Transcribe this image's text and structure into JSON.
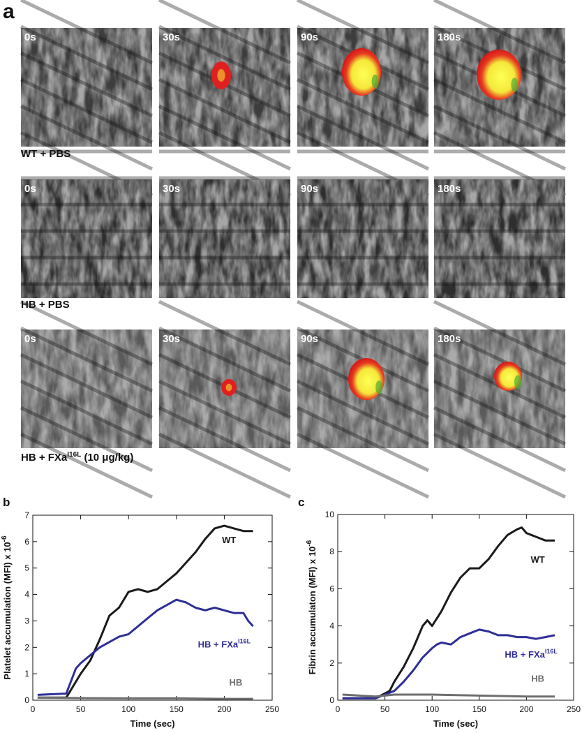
{
  "figure": {
    "panel_label": "a",
    "image_rows": [
      {
        "caption": "WT + PBS",
        "frames": [
          "0s",
          "30s",
          "90s",
          "180s"
        ]
      },
      {
        "caption": "HB + PBS",
        "frames": [
          "0s",
          "30s",
          "90s",
          "180s"
        ]
      },
      {
        "caption": "HB + FXa",
        "caption_sup": "I16L",
        "caption_end": " (10 μg/kg)",
        "frames": [
          "0s",
          "30s",
          "90s",
          "180s"
        ]
      }
    ]
  },
  "chart_data": [
    {
      "type": "line",
      "panel_label": "b",
      "xlabel": "Time (sec)",
      "ylabel": "Platelet accumulation (MFI) x 10",
      "ylabel_sup": "-6",
      "xlim": [
        0,
        250
      ],
      "xticks": [
        0,
        50,
        100,
        150,
        200,
        250
      ],
      "ylim": [
        0,
        7
      ],
      "yticks": [
        0,
        1,
        2,
        3,
        4,
        5,
        6,
        7
      ],
      "series": [
        {
          "name": "WT",
          "color": "#1a1a1a",
          "x": [
            5,
            35,
            40,
            50,
            60,
            70,
            80,
            90,
            100,
            110,
            120,
            130,
            140,
            150,
            160,
            170,
            180,
            190,
            200,
            210,
            220,
            230
          ],
          "values": [
            0.1,
            0.1,
            0.4,
            1.0,
            1.5,
            2.3,
            3.2,
            3.5,
            4.1,
            4.2,
            4.1,
            4.2,
            4.5,
            4.8,
            5.2,
            5.6,
            6.1,
            6.5,
            6.6,
            6.5,
            6.4,
            6.4
          ]
        },
        {
          "name": "HB + FXa",
          "name_sup": "I16L",
          "color": "#2e2e96",
          "x": [
            5,
            35,
            45,
            50,
            60,
            70,
            80,
            90,
            100,
            110,
            120,
            130,
            140,
            150,
            160,
            170,
            180,
            190,
            200,
            210,
            220,
            225,
            230
          ],
          "values": [
            0.2,
            0.25,
            1.2,
            1.4,
            1.7,
            2.0,
            2.2,
            2.4,
            2.5,
            2.8,
            3.1,
            3.4,
            3.6,
            3.8,
            3.7,
            3.5,
            3.4,
            3.5,
            3.4,
            3.3,
            3.3,
            3.0,
            2.8
          ]
        },
        {
          "name": "HB",
          "color": "#6e6e6e",
          "x": [
            5,
            50,
            100,
            150,
            200,
            230
          ],
          "values": [
            0.1,
            0.08,
            0.07,
            0.07,
            0.05,
            0.05
          ]
        }
      ]
    },
    {
      "type": "line",
      "panel_label": "c",
      "xlabel": "Time (sec)",
      "ylabel": "Fibrin accumulaton (MFI) x 10",
      "ylabel_sup": "-6",
      "xlim": [
        0,
        250
      ],
      "xticks": [
        0,
        50,
        100,
        150,
        200,
        250
      ],
      "ylim": [
        0,
        10
      ],
      "yticks": [
        0,
        2,
        4,
        6,
        8,
        10
      ],
      "series": [
        {
          "name": "WT",
          "color": "#1a1a1a",
          "x": [
            5,
            40,
            55,
            60,
            70,
            80,
            90,
            95,
            100,
            110,
            120,
            130,
            140,
            150,
            160,
            170,
            180,
            190,
            195,
            200,
            210,
            220,
            230
          ],
          "values": [
            0.1,
            0.1,
            0.5,
            1.0,
            1.8,
            2.8,
            4.0,
            4.3,
            4.0,
            4.8,
            5.8,
            6.6,
            7.1,
            7.1,
            7.6,
            8.3,
            8.9,
            9.2,
            9.3,
            9.0,
            8.8,
            8.6,
            8.6
          ]
        },
        {
          "name": "HB + FXa",
          "name_sup": "I16L",
          "color": "#2e2e96",
          "x": [
            5,
            40,
            60,
            70,
            80,
            90,
            100,
            105,
            110,
            120,
            130,
            140,
            150,
            160,
            170,
            180,
            190,
            200,
            210,
            220,
            230
          ],
          "values": [
            0.1,
            0.1,
            0.5,
            1.0,
            1.6,
            2.3,
            2.8,
            3.0,
            3.1,
            3.0,
            3.4,
            3.6,
            3.8,
            3.7,
            3.5,
            3.5,
            3.4,
            3.4,
            3.3,
            3.4,
            3.5
          ]
        },
        {
          "name": "HB",
          "color": "#6e6e6e",
          "x": [
            5,
            40,
            60,
            100,
            150,
            200,
            230
          ],
          "values": [
            0.3,
            0.2,
            0.3,
            0.3,
            0.25,
            0.2,
            0.2
          ]
        }
      ]
    }
  ]
}
